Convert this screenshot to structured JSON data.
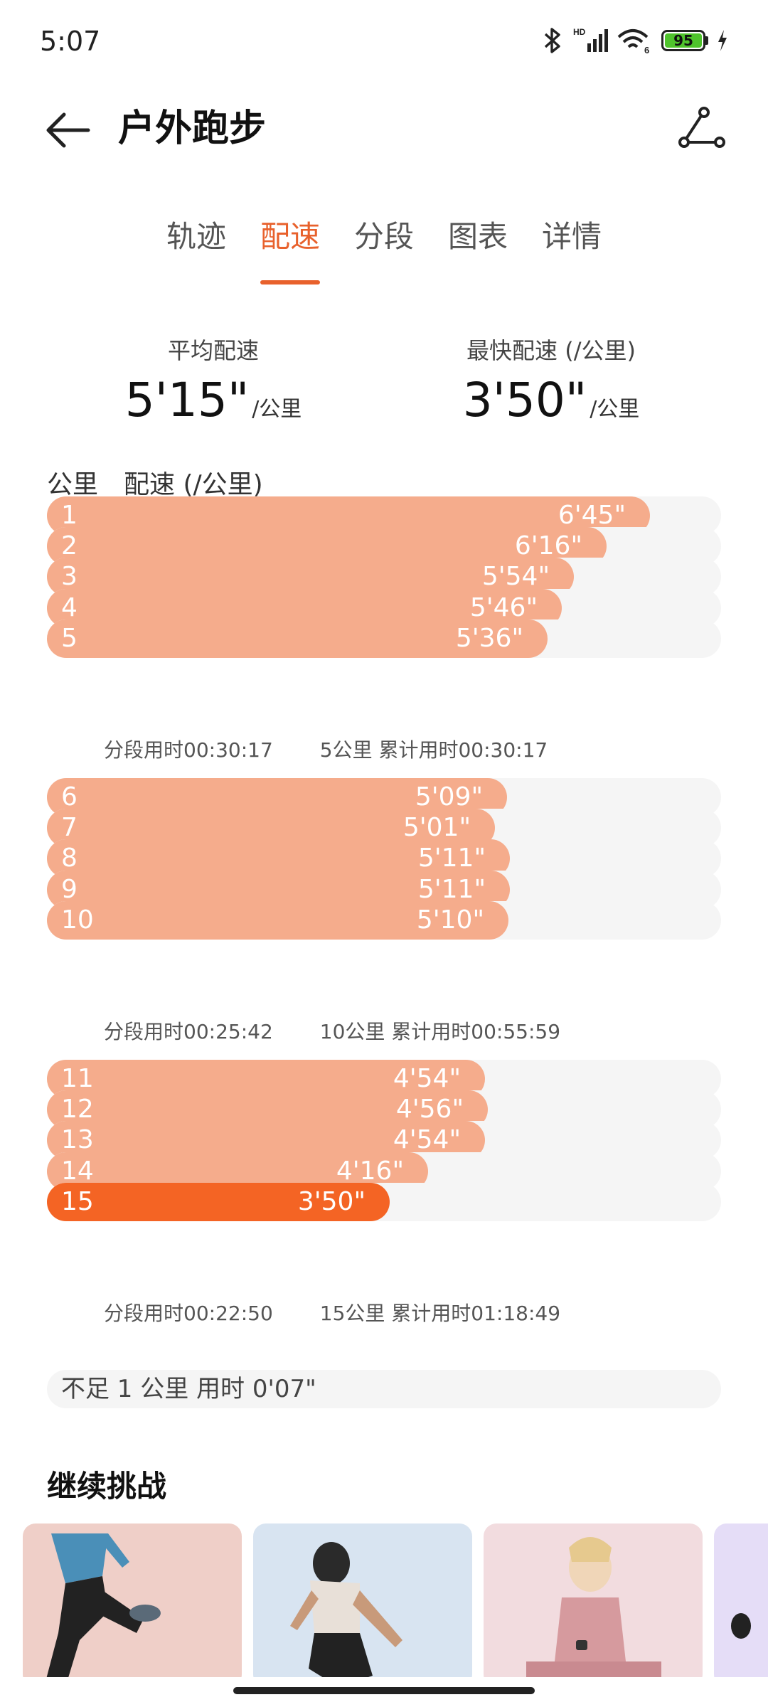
{
  "status": {
    "time": "5:07",
    "battery": "95",
    "network": "HD",
    "wifi_badge": "6"
  },
  "header": {
    "title": "户外跑步"
  },
  "tabs": [
    {
      "label": "轨迹",
      "active": false
    },
    {
      "label": "配速",
      "active": true
    },
    {
      "label": "分段",
      "active": false
    },
    {
      "label": "图表",
      "active": false
    },
    {
      "label": "详情",
      "active": false
    }
  ],
  "summary": {
    "avg_label": "平均配速",
    "avg_value": "5'15\"",
    "avg_unit": "/公里",
    "fast_label": "最快配速 (/公里)",
    "fast_value": "3'50\"",
    "fast_unit": "/公里"
  },
  "columns": {
    "km": "公里",
    "pace": "配速 (/公里)"
  },
  "chart_data": {
    "type": "bar",
    "orientation": "horizontal",
    "categories": [
      "1",
      "2",
      "3",
      "4",
      "5",
      "6",
      "7",
      "8",
      "9",
      "10",
      "11",
      "12",
      "13",
      "14",
      "15"
    ],
    "pace_labels": [
      "6'45\"",
      "6'16\"",
      "5'54\"",
      "5'46\"",
      "5'36\"",
      "5'09\"",
      "5'01\"",
      "5'11\"",
      "5'11\"",
      "5'10\"",
      "4'54\"",
      "4'56\"",
      "4'54\"",
      "4'16\"",
      "3'50\""
    ],
    "values_seconds": [
      405,
      376,
      354,
      346,
      336,
      309,
      301,
      311,
      311,
      310,
      294,
      296,
      294,
      256,
      230
    ],
    "fastest_index": 14,
    "colors": {
      "normal": "#f5ac8c",
      "fastest": "#f46424",
      "track": "#f5f5f5"
    }
  },
  "splits": [
    {
      "split": "分段用时00:30:17",
      "cumulative": "5公里 累计用时00:30:17"
    },
    {
      "split": "分段用时00:25:42",
      "cumulative": "10公里 累计用时00:55:59"
    },
    {
      "split": "分段用时00:22:50",
      "cumulative": "15公里 累计用时01:18:49"
    }
  ],
  "remainder": "不足 1 公里 用时 0'07\"",
  "challenge": {
    "title": "继续挑战"
  }
}
